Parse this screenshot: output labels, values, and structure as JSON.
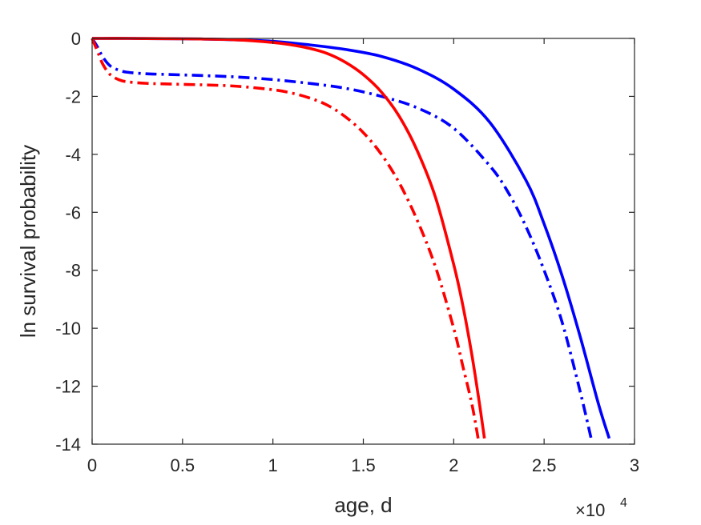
{
  "chart_data": {
    "type": "line",
    "title": "",
    "xlabel": "age, d",
    "ylabel": "ln survival probability",
    "x_exponent_label": {
      "base": "×10",
      "exp": "4"
    },
    "x_scale_factor": 10000,
    "xlim": [
      0,
      30000
    ],
    "ylim": [
      -14,
      0
    ],
    "xticks": [
      0,
      5000,
      10000,
      15000,
      20000,
      25000,
      30000
    ],
    "xtick_labels": [
      "0",
      "0.5",
      "1",
      "1.5",
      "2",
      "2.5",
      "3"
    ],
    "yticks": [
      0,
      -2,
      -4,
      -6,
      -8,
      -10,
      -12,
      -14
    ],
    "ytick_labels": [
      "0",
      "-2",
      "-4",
      "-6",
      "-8",
      "-10",
      "-12",
      "-14"
    ],
    "grid": false,
    "legend": "none",
    "series": [
      {
        "color": "#0000ff",
        "linestyle": "solid",
        "x": [
          0,
          2000,
          4000,
          6000,
          8000,
          10000,
          12000,
          14000,
          16000,
          18000,
          20000,
          22000,
          24000,
          25000,
          26000,
          27000,
          28000,
          28600
        ],
        "y": [
          0,
          0,
          -0.01,
          -0.02,
          -0.05,
          -0.1,
          -0.22,
          -0.38,
          -0.62,
          -1.05,
          -1.75,
          -2.9,
          -4.9,
          -6.4,
          -8.2,
          -10.3,
          -12.6,
          -13.8
        ]
      },
      {
        "color": "#0000ff",
        "linestyle": "dashdot",
        "x": [
          0,
          300,
          600,
          1000,
          1500,
          2000,
          3000,
          4000,
          6000,
          8000,
          10000,
          12000,
          14000,
          16000,
          18000,
          20000,
          22000,
          23000,
          24000,
          25000,
          26000,
          27000,
          27600
        ],
        "y": [
          0,
          -0.3,
          -0.65,
          -0.95,
          -1.1,
          -1.17,
          -1.22,
          -1.24,
          -1.28,
          -1.33,
          -1.42,
          -1.55,
          -1.72,
          -2.0,
          -2.4,
          -3.1,
          -4.4,
          -5.3,
          -6.5,
          -8.0,
          -9.8,
          -12.2,
          -13.8
        ]
      },
      {
        "color": "#ff0000",
        "linestyle": "solid",
        "x": [
          0,
          2000,
          4000,
          6000,
          8000,
          10000,
          11000,
          12000,
          13000,
          14000,
          15000,
          16000,
          17000,
          18000,
          19000,
          20000,
          20500,
          21000,
          21400,
          21700
        ],
        "y": [
          0,
          0,
          -0.01,
          -0.02,
          -0.05,
          -0.14,
          -0.22,
          -0.34,
          -0.52,
          -0.82,
          -1.25,
          -1.85,
          -2.7,
          -3.9,
          -5.5,
          -7.8,
          -9.2,
          -10.9,
          -12.5,
          -13.8
        ]
      },
      {
        "color": "#ff0000",
        "linestyle": "dashdot",
        "x": [
          0,
          300,
          600,
          1000,
          1500,
          2000,
          3000,
          4000,
          6000,
          8000,
          10000,
          11000,
          12000,
          13000,
          14000,
          15000,
          16000,
          17000,
          18000,
          19000,
          20000,
          20500,
          21000,
          21350
        ],
        "y": [
          0,
          -0.45,
          -0.9,
          -1.25,
          -1.43,
          -1.5,
          -1.55,
          -1.57,
          -1.6,
          -1.65,
          -1.77,
          -1.88,
          -2.05,
          -2.3,
          -2.7,
          -3.25,
          -4.0,
          -5.0,
          -6.3,
          -7.9,
          -10.0,
          -11.3,
          -12.6,
          -13.8
        ]
      }
    ]
  }
}
